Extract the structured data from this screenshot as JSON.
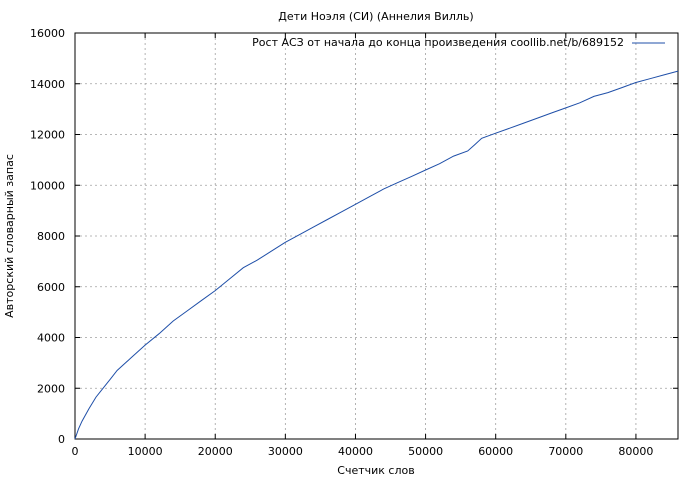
{
  "chart_data": {
    "type": "line",
    "title": "Дети Ноэля (СИ) (Аннелия Вилль)",
    "xlabel": "Счетчик слов",
    "ylabel": "Авторский словарный запас",
    "xlim": [
      0,
      86000
    ],
    "ylim": [
      0,
      16000
    ],
    "xticks": [
      0,
      10000,
      20000,
      30000,
      40000,
      50000,
      60000,
      70000,
      80000
    ],
    "yticks": [
      0,
      2000,
      4000,
      6000,
      8000,
      10000,
      12000,
      14000,
      16000
    ],
    "grid": true,
    "legend_position": "top-right",
    "series": [
      {
        "name": "Рост АСЗ от начала до конца произведения coollib.net/b/689152",
        "color": "#1f4fa8",
        "x": [
          0,
          500,
          1000,
          2000,
          3000,
          4000,
          5000,
          6000,
          8000,
          10000,
          12000,
          14000,
          16000,
          18000,
          20000,
          22000,
          24000,
          26000,
          28000,
          30000,
          32000,
          34000,
          36000,
          38000,
          40000,
          42000,
          44000,
          46000,
          48000,
          50000,
          52000,
          54000,
          56000,
          57000,
          58000,
          60000,
          62000,
          64000,
          66000,
          68000,
          70000,
          72000,
          74000,
          76000,
          78000,
          80000,
          82000,
          84000,
          86000
        ],
        "y": [
          0,
          400,
          700,
          1200,
          1650,
          2000,
          2350,
          2700,
          3200,
          3700,
          4150,
          4650,
          5050,
          5450,
          5850,
          6300,
          6750,
          7050,
          7400,
          7750,
          8050,
          8350,
          8650,
          8950,
          9250,
          9550,
          9850,
          10100,
          10350,
          10600,
          10850,
          11150,
          11350,
          11600,
          11850,
          12050,
          12250,
          12450,
          12650,
          12850,
          13050,
          13250,
          13500,
          13650,
          13850,
          14050,
          14200,
          14350,
          14500
        ]
      }
    ]
  }
}
